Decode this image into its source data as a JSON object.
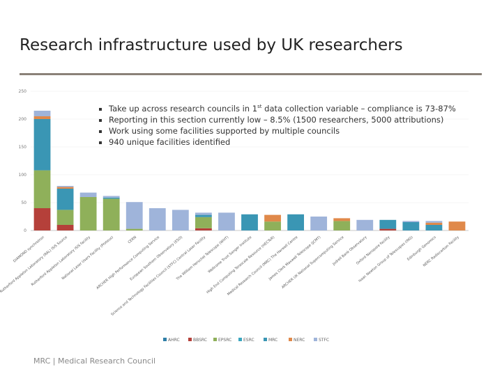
{
  "title": "Research infrastructure used by UK researchers",
  "bullets": [
    [
      "Take up across research councils in 1",
      "st",
      " data collection variable – compliance is 73-87%"
    ],
    [
      "Reporting in this section currently low – 8.5% (1500 researchers, 5000 attributions)"
    ],
    [
      "Work using some facilities supported by multiple councils"
    ],
    [
      "940 unique facilities identified"
    ]
  ],
  "footer": {
    "org": "MRC",
    "name": "Medical Research Council"
  },
  "chart_data": {
    "type": "stacked-bar",
    "categories": [
      "DIAMOND synchrotron",
      "Rutherford Appleton Laboratory (RAL) ISIS Source",
      "Rutherford Appleton Laboratory ISIS facility",
      "National Laser Users Facility (Proteus)",
      "CERN",
      "ARCHER High Performance Computing Service",
      "European Southern Observatory (ESO)",
      "Science and Technology Facilities Council (STFC) Central Laser Facility",
      "The William Herschel Telescope (WHT)",
      "Wellcome Trust Sanger Institute",
      "High End Computing Terascale Resource (HECToR)",
      "Medical Research Council (MRC) The Harwell Centre",
      "James Clerk Maxwell Telescope (JCMT)",
      "ARCHER UK National Supercomputing Service",
      "Jodrell Bank Observatory",
      "Oxford Nanopore facility",
      "Isaac Newton Group of Telescopes (ING)",
      "Edinburgh Genomics",
      "NERC Radiocarbon Facility"
    ],
    "series": [
      {
        "name": "AHRC",
        "color": "#2f7fa8",
        "values": [
          0,
          0,
          0,
          0,
          0,
          0,
          0,
          0,
          0,
          0,
          0,
          0,
          0,
          0,
          0,
          0,
          0,
          0,
          0
        ]
      },
      {
        "name": "BBSRC",
        "color": "#b5403a",
        "values": [
          40,
          10,
          0,
          0,
          0,
          0,
          0,
          4,
          0,
          0,
          0,
          0,
          0,
          0,
          0,
          3,
          0,
          0,
          0
        ]
      },
      {
        "name": "EPSRC",
        "color": "#8fb05a",
        "values": [
          68,
          27,
          60,
          57,
          3,
          0,
          0,
          20,
          0,
          0,
          16,
          0,
          0,
          17,
          0,
          0,
          0,
          0,
          0
        ]
      },
      {
        "name": "ESRC",
        "color": "#3aa6bf",
        "values": [
          0,
          0,
          0,
          0,
          0,
          0,
          0,
          0,
          0,
          0,
          0,
          0,
          0,
          0,
          0,
          0,
          0,
          0,
          0
        ]
      },
      {
        "name": "MRC",
        "color": "#3a96b4",
        "values": [
          92,
          38,
          0,
          2,
          0,
          0,
          0,
          4,
          0,
          29,
          0,
          29,
          0,
          0,
          0,
          16,
          15,
          10,
          0
        ]
      },
      {
        "name": "NERC",
        "color": "#e0894a",
        "values": [
          5,
          3,
          0,
          0,
          0,
          0,
          0,
          0,
          0,
          0,
          12,
          0,
          0,
          5,
          0,
          0,
          0,
          4,
          16
        ]
      },
      {
        "name": "STFC",
        "color": "#9fb4da",
        "values": [
          10,
          2,
          8,
          3,
          48,
          40,
          37,
          4,
          32,
          0,
          0,
          0,
          25,
          0,
          19,
          0,
          2,
          3,
          0
        ]
      }
    ],
    "ylim": [
      0,
      250
    ],
    "yticks": [
      0,
      50,
      100,
      150,
      200,
      250
    ],
    "grid": true
  }
}
